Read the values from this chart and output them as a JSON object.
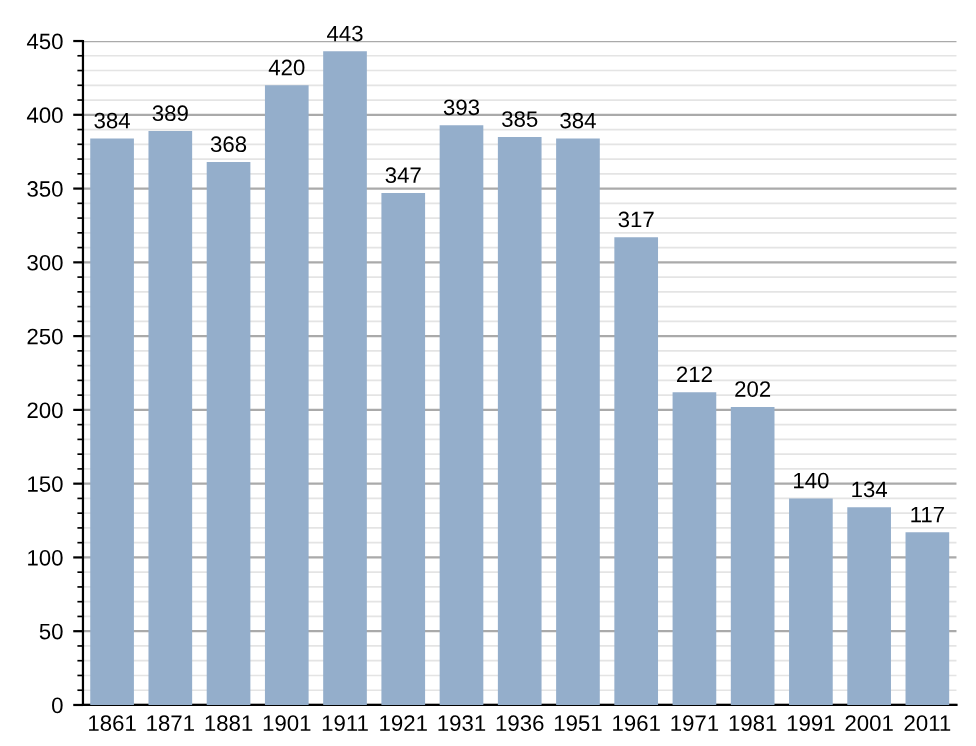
{
  "chart_data": {
    "type": "bar",
    "categories": [
      "1861",
      "1871",
      "1881",
      "1901",
      "1911",
      "1921",
      "1931",
      "1936",
      "1951",
      "1961",
      "1971",
      "1981",
      "1991",
      "2001",
      "2011"
    ],
    "values": [
      384,
      389,
      368,
      420,
      443,
      347,
      393,
      385,
      384,
      317,
      212,
      202,
      140,
      134,
      117
    ],
    "color": "#94aecb",
    "data_labels": true,
    "ylim": [
      0,
      450
    ],
    "yticks": [
      0,
      50,
      100,
      150,
      200,
      250,
      300,
      350,
      400,
      450
    ],
    "grid": "y"
  }
}
